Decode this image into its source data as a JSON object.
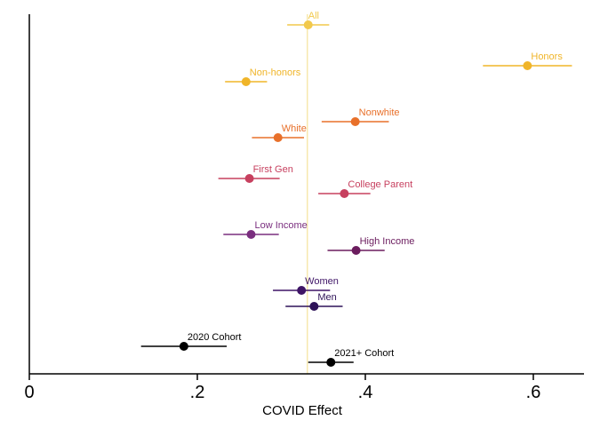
{
  "chart_data": {
    "type": "scatter",
    "title": "",
    "xlabel": "COVID Effect",
    "ylabel": "",
    "xlim": [
      0,
      0.66
    ],
    "x_ticks": [
      {
        "value": 0,
        "label": "0"
      },
      {
        "value": 0.2,
        "label": ".2"
      },
      {
        "value": 0.4,
        "label": ".4"
      },
      {
        "value": 0.6,
        "label": ".6"
      }
    ],
    "reference_line": {
      "x": 0.331,
      "color": "#f5e39a"
    },
    "grid": false,
    "legend": "none",
    "points": [
      {
        "label": "All",
        "estimate": 0.332,
        "ci_low": 0.307,
        "ci_high": 0.357,
        "color": "#f2c94c",
        "label_color": "#f2c94c"
      },
      {
        "label": "Honors",
        "estimate": 0.593,
        "ci_low": 0.54,
        "ci_high": 0.646,
        "color": "#f0b529",
        "label_color": "#f0b529"
      },
      {
        "label": "Non-honors",
        "estimate": 0.258,
        "ci_low": 0.233,
        "ci_high": 0.283,
        "color": "#f0b529",
        "label_color": "#f0b529"
      },
      {
        "label": "Nonwhite",
        "estimate": 0.388,
        "ci_low": 0.348,
        "ci_high": 0.428,
        "color": "#e8702a",
        "label_color": "#e8702a"
      },
      {
        "label": "White",
        "estimate": 0.296,
        "ci_low": 0.265,
        "ci_high": 0.327,
        "color": "#e8702a",
        "label_color": "#e8702a"
      },
      {
        "label": "First Gen",
        "estimate": 0.262,
        "ci_low": 0.225,
        "ci_high": 0.298,
        "color": "#c7405f",
        "label_color": "#c7405f"
      },
      {
        "label": "College Parent",
        "estimate": 0.375,
        "ci_low": 0.344,
        "ci_high": 0.406,
        "color": "#c7405f",
        "label_color": "#c7405f"
      },
      {
        "label": "Low Income",
        "estimate": 0.264,
        "ci_low": 0.231,
        "ci_high": 0.297,
        "color": "#7a2e7f",
        "label_color": "#7a2e7f"
      },
      {
        "label": "High Income",
        "estimate": 0.389,
        "ci_low": 0.355,
        "ci_high": 0.423,
        "color": "#6b1c5e",
        "label_color": "#6b1c5e"
      },
      {
        "label": "Women",
        "estimate": 0.324,
        "ci_low": 0.29,
        "ci_high": 0.358,
        "color": "#3e1466",
        "label_color": "#3e1466"
      },
      {
        "label": "Men",
        "estimate": 0.339,
        "ci_low": 0.305,
        "ci_high": 0.373,
        "color": "#2e1258",
        "label_color": "#2e1258"
      },
      {
        "label": "2020 Cohort",
        "estimate": 0.184,
        "ci_low": 0.133,
        "ci_high": 0.235,
        "color": "#000000",
        "label_color": "#000000"
      },
      {
        "label": "2021+ Cohort",
        "estimate": 0.359,
        "ci_low": 0.332,
        "ci_high": 0.386,
        "color": "#000000",
        "label_color": "#000000"
      }
    ]
  }
}
